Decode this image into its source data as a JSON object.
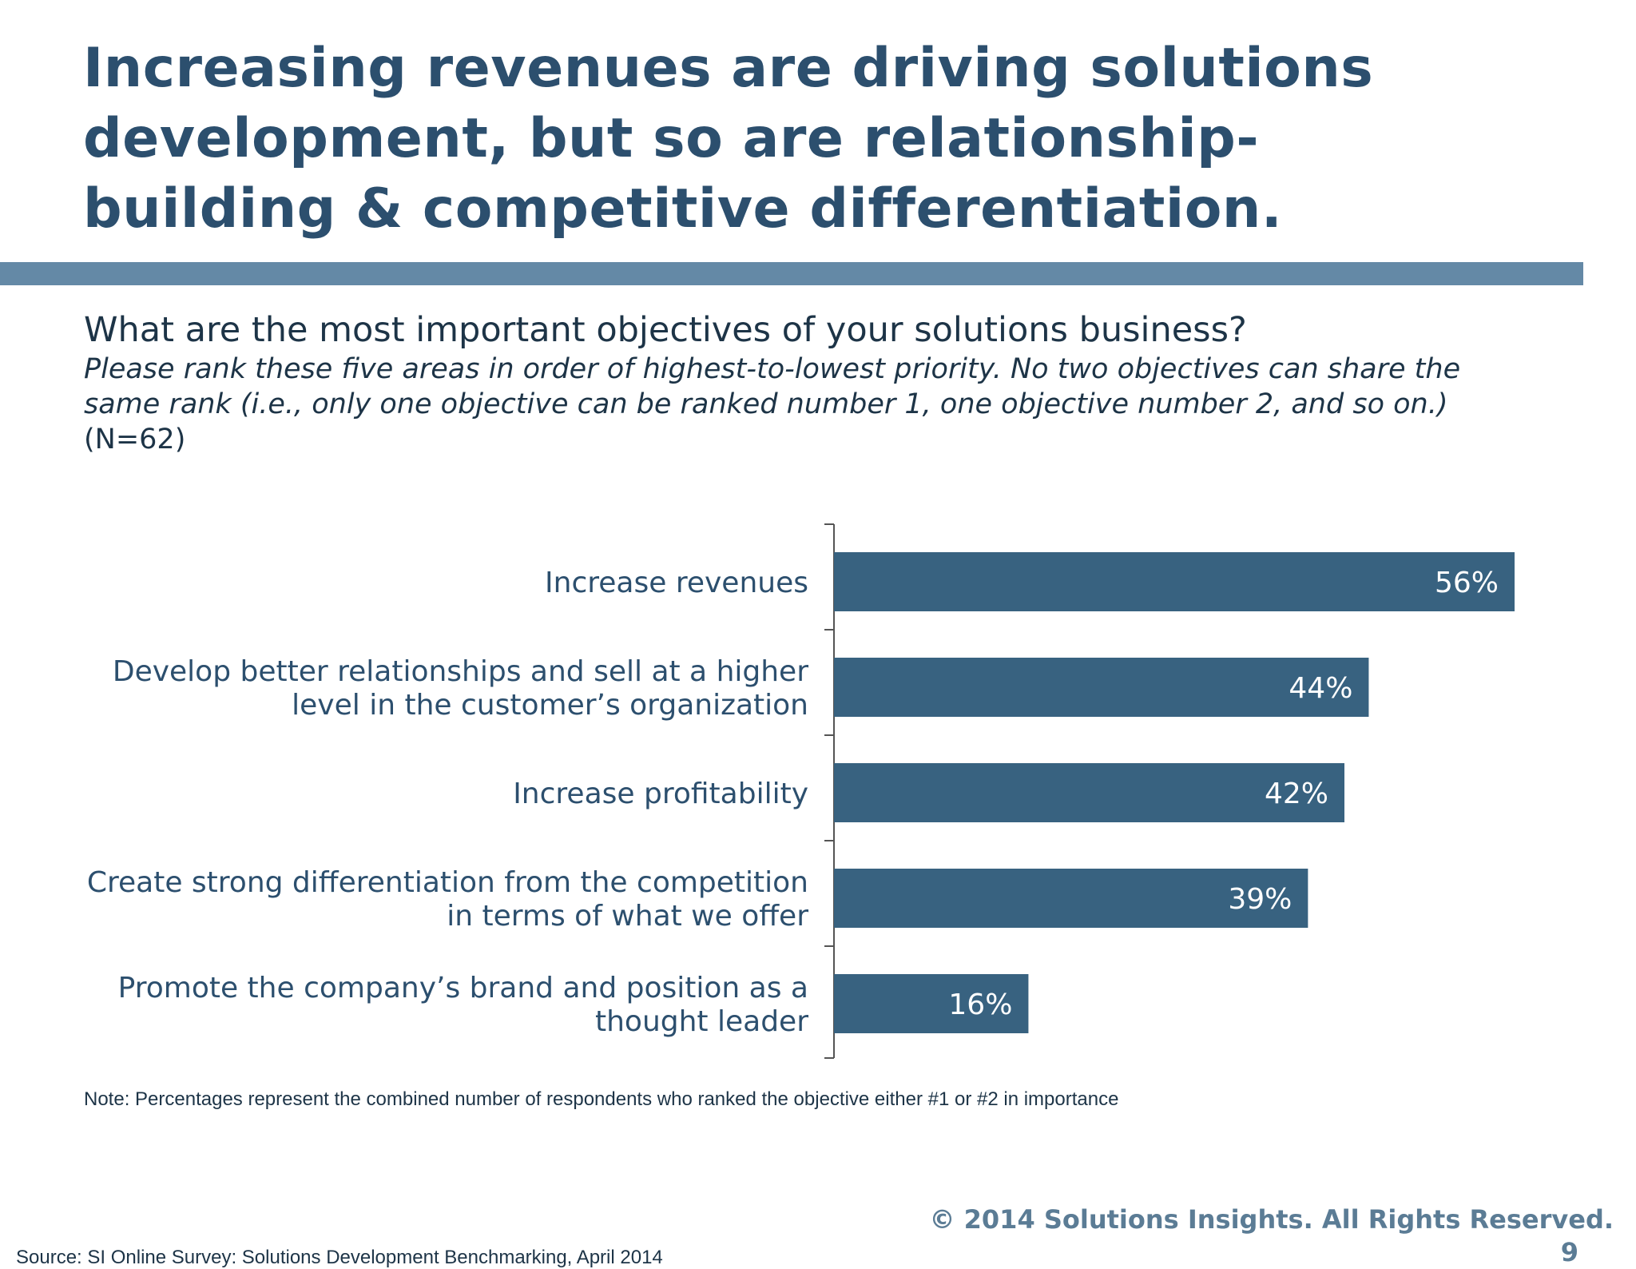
{
  "title_lines": [
    "Increasing revenues are driving solutions",
    "development, but so are relationship-",
    "building & competitive differentiation."
  ],
  "question": "What are the most important objectives of your solutions business?",
  "instruction_lines": [
    "Please rank these five areas in order of highest-to-lowest priority. No two objectives can share the",
    "same rank (i.e., only one objective can be ranked number 1, one objective number 2, and so on.)"
  ],
  "sample_size": "(N=62)",
  "note": "Note: Percentages represent the combined number of respondents who ranked the objective either #1 or #2 in importance",
  "copyright": "© 2014 Solutions Insights. All Rights Reserved.",
  "page_number": "9",
  "source": "Source: SI Online Survey: Solutions Development Benchmarking, April 2014",
  "colors": {
    "title": "#2c4f6e",
    "rule": "#6489a6",
    "bar": "#386280",
    "bar_label": "#ffffff",
    "category_label": "#2c4f6e"
  },
  "chart_data": {
    "type": "bar",
    "orientation": "horizontal",
    "categories": [
      [
        "Increase revenues"
      ],
      [
        "Develop better relationships and sell at a higher",
        "level in the customer’s organization"
      ],
      [
        "Increase profitability"
      ],
      [
        "Create strong differentiation from the competition",
        "in terms of what we offer"
      ],
      [
        "Promote the company’s brand and position as a",
        "thought leader"
      ]
    ],
    "values": [
      56,
      44,
      42,
      39,
      16
    ],
    "value_labels": [
      "56%",
      "44%",
      "42%",
      "39%",
      "16%"
    ],
    "unit": "%",
    "xlim": [
      0,
      56
    ],
    "grid": false,
    "legend": "none"
  }
}
